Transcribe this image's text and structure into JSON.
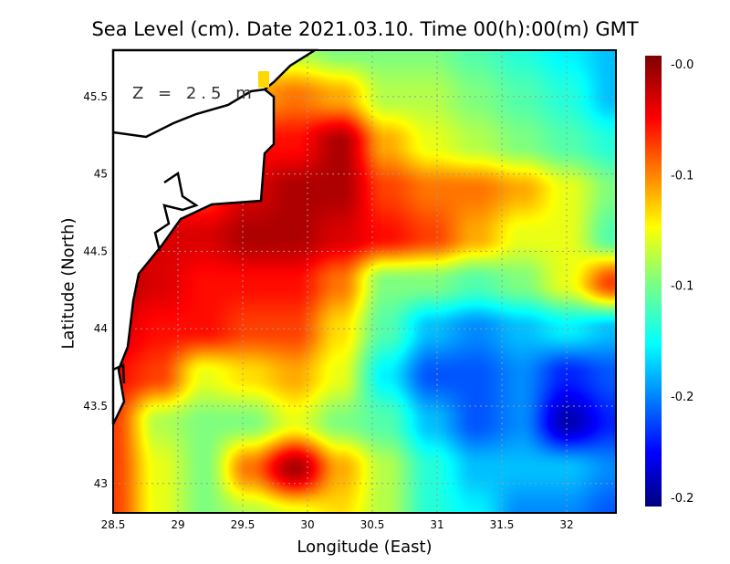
{
  "chart_data": {
    "type": "heatmap",
    "title": "Sea Level (cm). Date 2021.03.10. Time 00(h):00(m) GMT",
    "xlabel": "Longitude (East)",
    "ylabel": "Latitude (North)",
    "annotation": "Z = 2.5 m",
    "xlim": [
      28.5,
      32.38
    ],
    "ylim": [
      42.81,
      45.8
    ],
    "xticks": [
      "28.5",
      "29",
      "29.5",
      "30",
      "30.5",
      "31",
      "31.5",
      "32"
    ],
    "xtick_values": [
      28.5,
      29,
      29.5,
      30,
      30.5,
      31,
      31.5,
      32
    ],
    "yticks": [
      "43",
      "43.5",
      "44",
      "44.5",
      "45",
      "45.5"
    ],
    "ytick_values": [
      43,
      43.5,
      44,
      44.5,
      45,
      45.5
    ],
    "grid": true,
    "colorbar": {
      "labels": [
        "-0.0",
        "-0.1",
        "-0.1",
        "-0.2",
        "-0.2"
      ],
      "vmin": -0.22,
      "vmax": -0.02,
      "colormap": "jet"
    },
    "grid_lon": [
      28.5,
      28.85,
      29.2,
      29.55,
      29.9,
      30.25,
      30.6,
      30.95,
      31.3,
      31.65,
      32.0,
      32.35
    ],
    "grid_lat": [
      45.8,
      45.5,
      45.2,
      44.9,
      44.6,
      44.3,
      44.0,
      43.7,
      43.4,
      43.1,
      42.8
    ],
    "values": [
      [
        -0.1,
        -0.1,
        -0.1,
        -0.1,
        -0.11,
        -0.12,
        -0.12,
        -0.12,
        -0.13,
        -0.14,
        -0.15,
        -0.16
      ],
      [
        -0.08,
        -0.08,
        -0.08,
        -0.08,
        -0.07,
        -0.08,
        -0.11,
        -0.11,
        -0.12,
        -0.13,
        -0.14,
        -0.16
      ],
      [
        -0.05,
        -0.05,
        -0.05,
        -0.05,
        -0.05,
        -0.03,
        -0.08,
        -0.1,
        -0.11,
        -0.12,
        -0.13,
        -0.14
      ],
      [
        -0.06,
        -0.06,
        -0.06,
        -0.04,
        -0.03,
        -0.03,
        -0.06,
        -0.07,
        -0.07,
        -0.08,
        -0.1,
        -0.12
      ],
      [
        -0.05,
        -0.04,
        -0.04,
        -0.03,
        -0.03,
        -0.04,
        -0.05,
        -0.06,
        -0.08,
        -0.1,
        -0.1,
        -0.13
      ],
      [
        -0.03,
        -0.04,
        -0.05,
        -0.05,
        -0.05,
        -0.07,
        -0.12,
        -0.12,
        -0.13,
        -0.12,
        -0.1,
        -0.06
      ],
      [
        -0.04,
        -0.05,
        -0.05,
        -0.06,
        -0.06,
        -0.09,
        -0.13,
        -0.16,
        -0.17,
        -0.16,
        -0.15,
        -0.16
      ],
      [
        -0.05,
        -0.06,
        -0.1,
        -0.09,
        -0.08,
        -0.1,
        -0.15,
        -0.18,
        -0.18,
        -0.17,
        -0.19,
        -0.18
      ],
      [
        -0.06,
        -0.11,
        -0.12,
        -0.12,
        -0.1,
        -0.12,
        -0.13,
        -0.16,
        -0.18,
        -0.17,
        -0.21,
        -0.19
      ],
      [
        -0.06,
        -0.1,
        -0.12,
        -0.07,
        -0.03,
        -0.08,
        -0.11,
        -0.14,
        -0.16,
        -0.16,
        -0.16,
        -0.17
      ],
      [
        -0.06,
        -0.1,
        -0.12,
        -0.11,
        -0.1,
        -0.09,
        -0.11,
        -0.14,
        -0.15,
        -0.17,
        -0.17,
        -0.18
      ]
    ],
    "colors": {
      "land": "#ffffff",
      "coast": "#000000",
      "gridline": "#9a9a9a"
    }
  }
}
